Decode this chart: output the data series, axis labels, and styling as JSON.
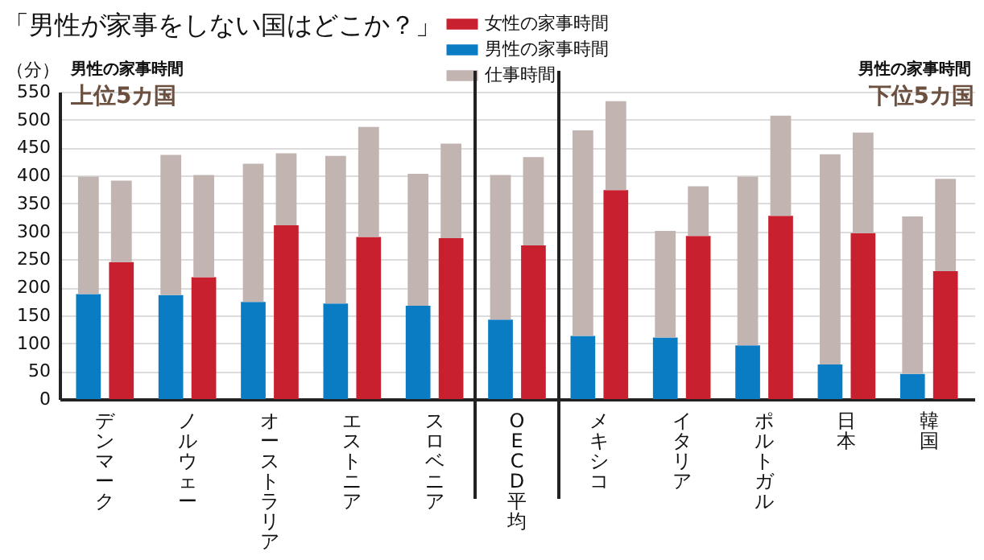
{
  "chart_data": {
    "type": "bar",
    "title": "「男性が家事をしない国はどこか？」",
    "ylabel": "（分）",
    "annotations": [
      "男性の家事時間",
      "上位5カ国",
      "男性の家事時間",
      "下位5カ国"
    ],
    "categories": [
      "デンマーク",
      "ノルウェー",
      "オーストラリア",
      "エストニア",
      "スロベニア",
      "OECD平均",
      "メキシコ",
      "イタリア",
      "ポルトガル",
      "日本",
      "韓国"
    ],
    "series": [
      {
        "name": "女性の家事時間",
        "color": "#c8202f",
        "values": [
          245,
          218,
          311,
          290,
          288,
          275,
          374,
          292,
          328,
          297,
          229
        ]
      },
      {
        "name": "男性の家事時間",
        "color": "#0a7cc4",
        "values": [
          188,
          186,
          174,
          171,
          167,
          142,
          113,
          110,
          96,
          62,
          45
        ]
      },
      {
        "name": "仕事時間",
        "color": "#c2b5b1",
        "base": [
          188,
          186,
          174,
          171,
          167,
          142,
          113,
          110,
          96,
          62,
          45
        ],
        "values": [
          210,
          251,
          247,
          264,
          236,
          259,
          368,
          191,
          302,
          376,
          282
        ]
      },
      {
        "color": "#c2b5b1",
        "base": [
          245,
          218,
          311,
          290,
          288,
          275,
          374,
          292,
          328,
          297,
          229
        ],
        "values": [
          146,
          183,
          129,
          197,
          169,
          158,
          159,
          89,
          179,
          180,
          165
        ]
      }
    ],
    "ylim": [
      0,
      550
    ],
    "yticks": [
      0,
      50,
      100,
      150,
      200,
      250,
      300,
      350,
      400,
      450,
      500,
      550
    ],
    "grid": "y",
    "legend": "top"
  }
}
